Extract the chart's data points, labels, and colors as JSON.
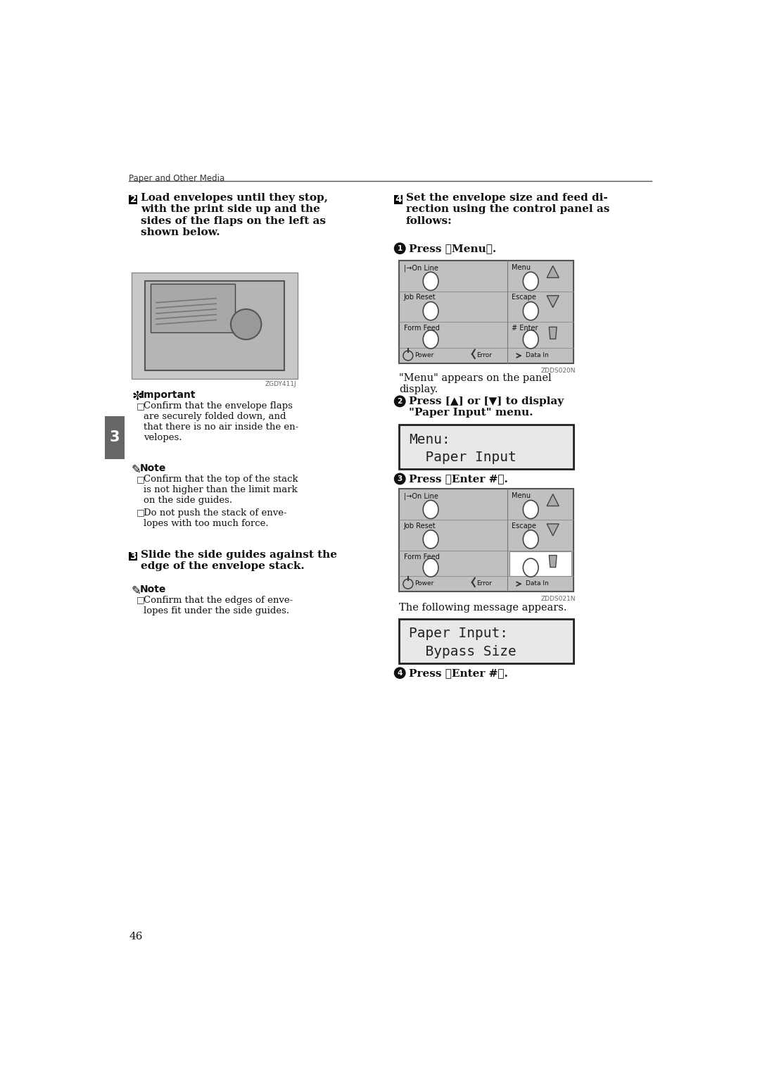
{
  "page_bg": "#ffffff",
  "header_text": "Paper and Other Media",
  "page_number": "46",
  "chapter_num": "3",
  "step2_heading": "Load envelopes until they stop,\nwith the print side up and the\nsides of the flaps on the left as\nshown below.",
  "step4_heading": "Set the envelope size and feed di-\nrection using the control panel as\nfollows:",
  "menu_appears_text": "\"Menu\" appears on the panel\ndisplay.",
  "sub2_text": "Press [▲] or [▼] to display\n\"Paper Input\" menu.",
  "following_text": "The following message appears.",
  "important_title": "Important",
  "note_title1": "Note",
  "note_title2": "Note",
  "step3_heading": "Slide the side guides against the\nedge of the envelope stack.",
  "display1_line1": "Menu:",
  "display1_line2": "  Paper Input",
  "display2_line1": "Paper Input:",
  "display2_line2": "  Bypass Size",
  "image_code1": "ZGDY411J",
  "image_code2": "ZDDS020N",
  "image_code3": "ZDDS021N"
}
